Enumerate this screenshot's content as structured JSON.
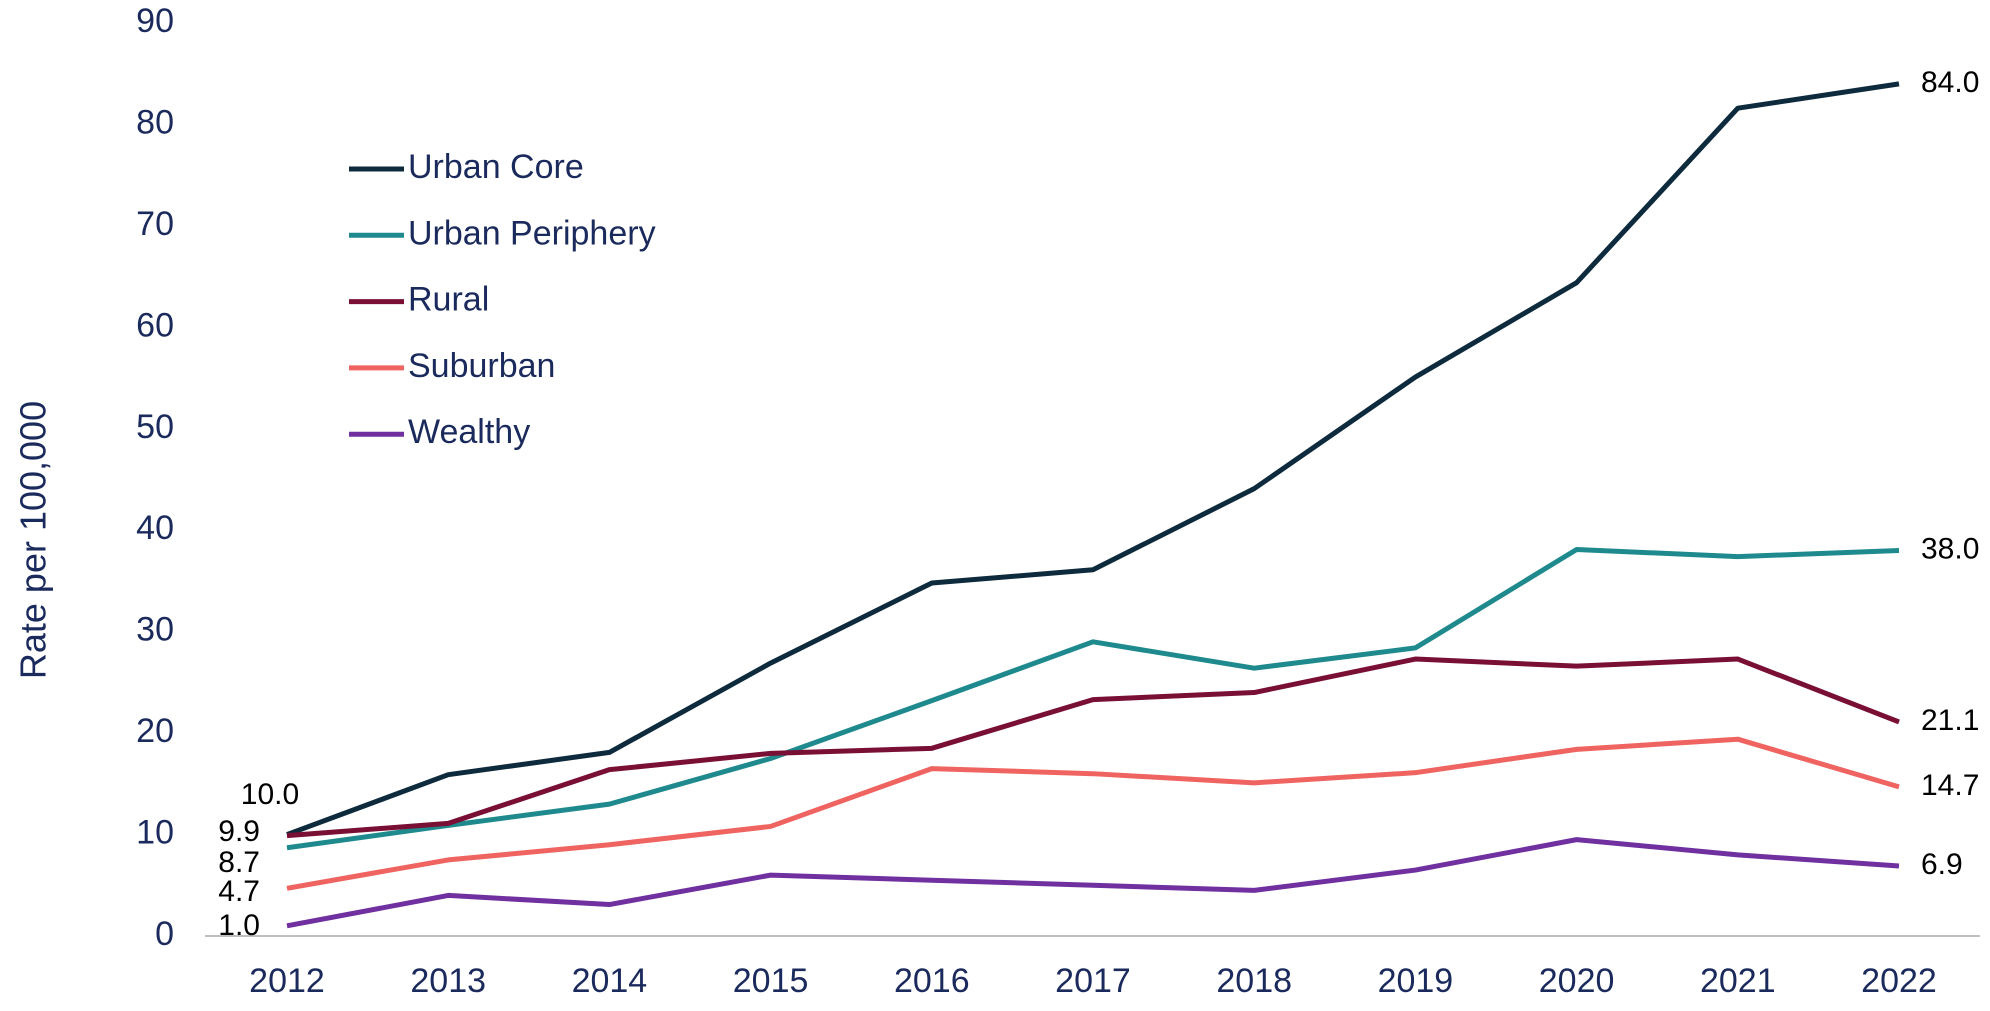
{
  "chart_data": {
    "type": "line",
    "y_label": "Rate per 100,000",
    "categories": [
      "2012",
      "2013",
      "2014",
      "2015",
      "2016",
      "2017",
      "2018",
      "2019",
      "2020",
      "2021",
      "2022"
    ],
    "ylim": [
      0,
      90
    ],
    "yticks": [
      0,
      10,
      20,
      30,
      40,
      50,
      60,
      70,
      80,
      90
    ],
    "series": [
      {
        "name": "Urban Core",
        "color": "#0e2a3d",
        "values": [
          10.0,
          15.9,
          18.1,
          26.9,
          34.8,
          36.1,
          44.1,
          55.1,
          64.4,
          81.6,
          84.0
        ],
        "value_labels": [
          "10.0",
          null,
          null,
          null,
          null,
          null,
          null,
          null,
          null,
          null,
          "84.0"
        ]
      },
      {
        "name": "Urban Periphery",
        "color": "#1f8a8e",
        "values": [
          8.7,
          10.9,
          13.0,
          17.5,
          23.2,
          29.0,
          26.4,
          28.4,
          38.1,
          37.4,
          38.0
        ],
        "value_labels": [
          "8.7",
          null,
          null,
          null,
          null,
          null,
          null,
          null,
          null,
          null,
          "38.0"
        ]
      },
      {
        "name": "Rural",
        "color": "#7a0f35",
        "values": [
          9.9,
          11.1,
          16.4,
          18.0,
          18.5,
          23.3,
          24.0,
          27.3,
          26.6,
          27.3,
          21.1
        ],
        "value_labels": [
          "9.9",
          null,
          null,
          null,
          null,
          null,
          null,
          null,
          null,
          null,
          "21.1"
        ]
      },
      {
        "name": "Suburban",
        "color": "#ef6461",
        "values": [
          4.7,
          7.5,
          9.0,
          10.8,
          16.5,
          16.0,
          15.1,
          16.1,
          18.4,
          19.4,
          14.7
        ],
        "value_labels": [
          "4.7",
          null,
          null,
          null,
          null,
          null,
          null,
          null,
          null,
          null,
          "14.7"
        ]
      },
      {
        "name": "Wealthy",
        "color": "#7030a0",
        "values": [
          1.0,
          4.0,
          3.1,
          6.0,
          5.5,
          5.0,
          4.5,
          6.5,
          9.5,
          8.0,
          6.9
        ],
        "value_labels": [
          "1.0",
          null,
          null,
          null,
          null,
          null,
          null,
          null,
          null,
          null,
          "6.9"
        ]
      }
    ]
  }
}
